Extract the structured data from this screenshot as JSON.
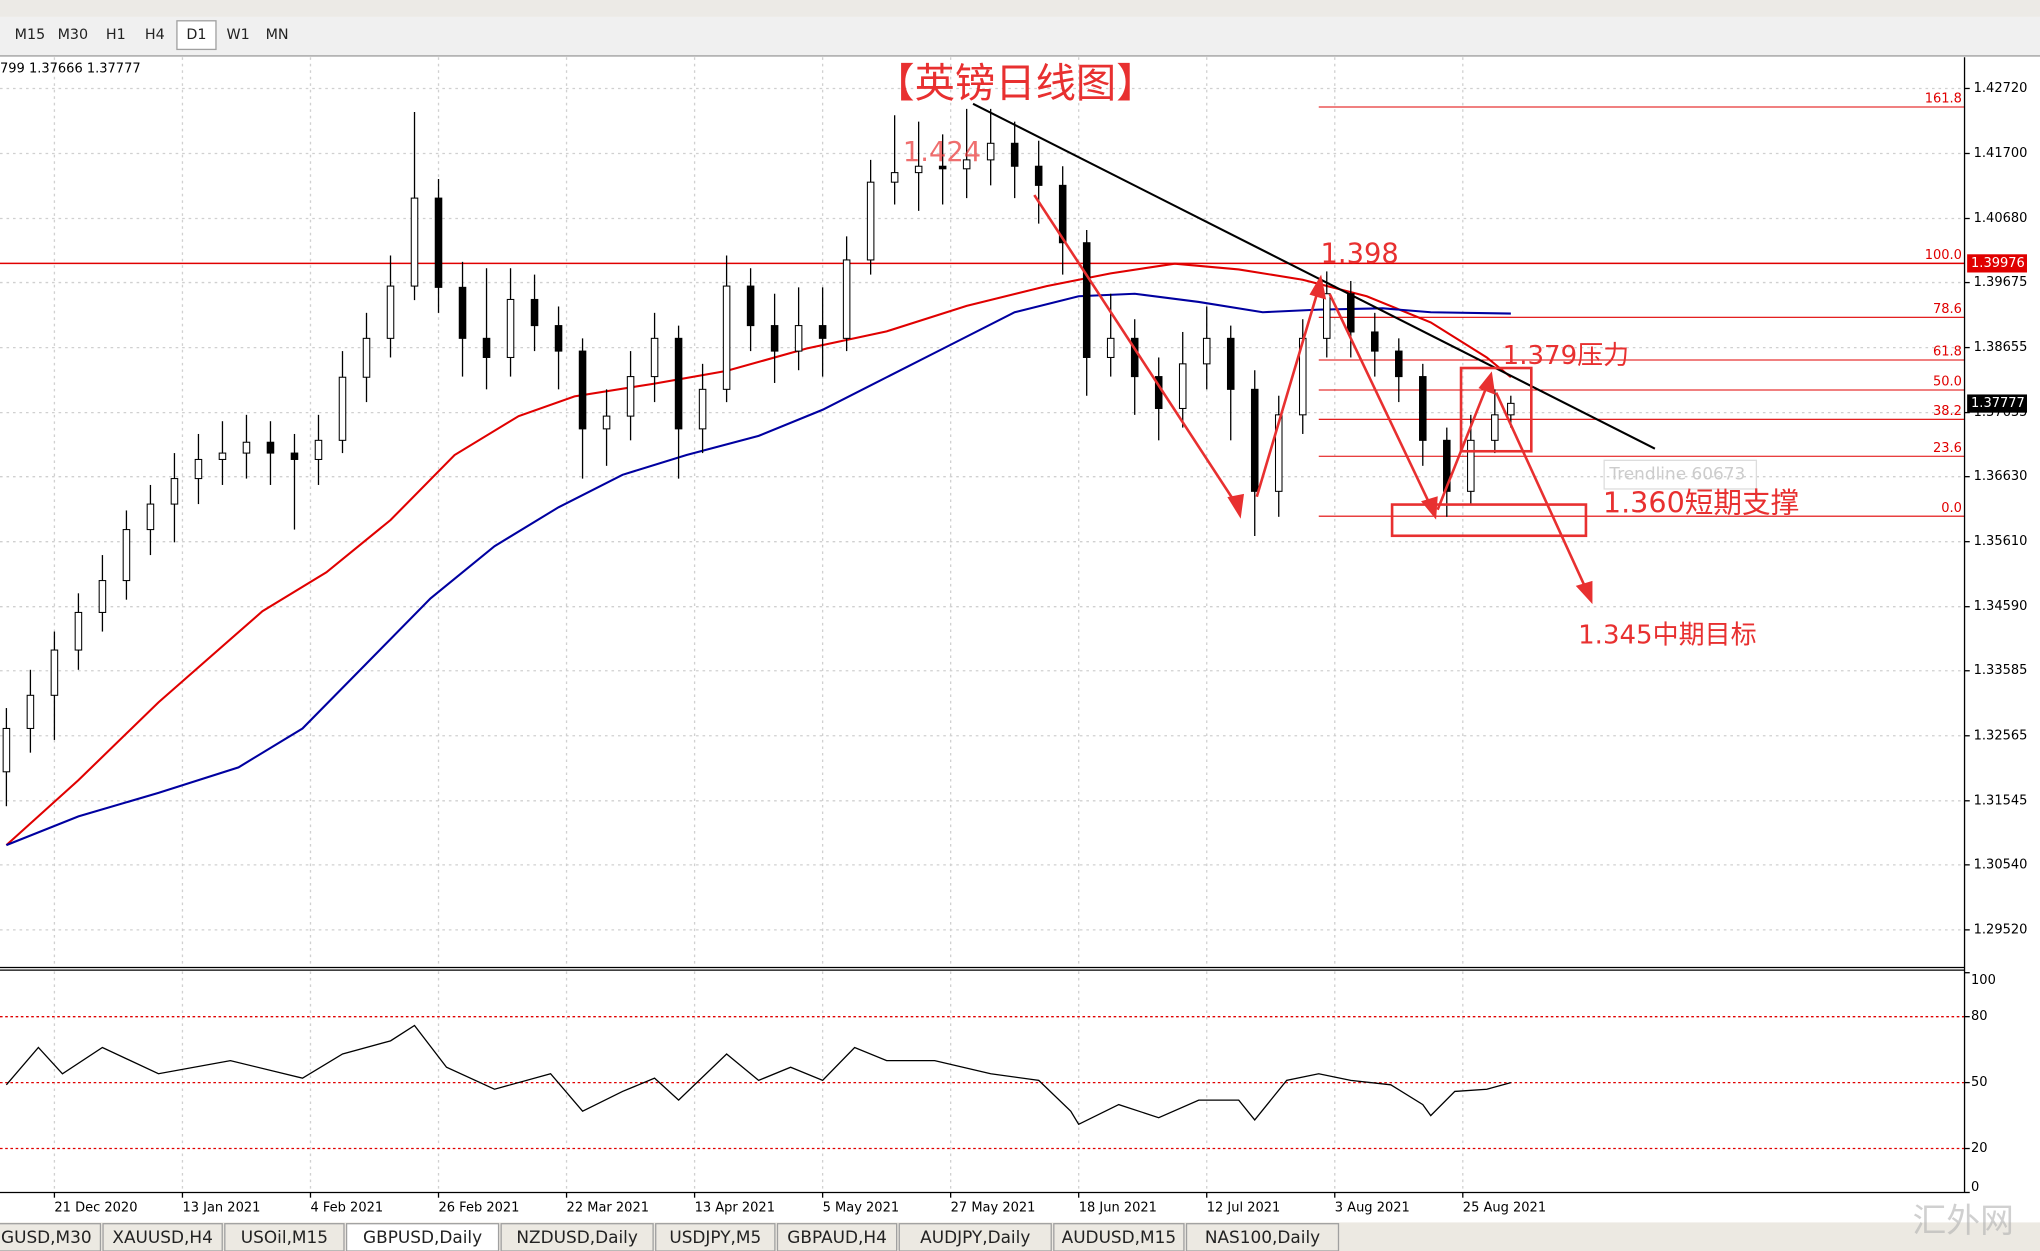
{
  "toolbar": {
    "timeframes": [
      "M15",
      "M30",
      "H1",
      "H4",
      "D1",
      "W1",
      "MN"
    ],
    "active_timeframe": 4
  },
  "chart_data": {
    "type": "candlestick",
    "info": "799 1.37666 1.37777",
    "xlim": [
      -0.8,
      244.7
    ],
    "xticks": [
      {
        "value": 6,
        "label": "21 Dec 2020"
      },
      {
        "value": 22,
        "label": "13 Jan 2021"
      },
      {
        "value": 38,
        "label": "4 Feb 2021"
      },
      {
        "value": 54,
        "label": "26 Feb 2021"
      },
      {
        "value": 70,
        "label": "22 Mar 2021"
      },
      {
        "value": 86,
        "label": "13 Apr 2021"
      },
      {
        "value": 102,
        "label": "5 May 2021"
      },
      {
        "value": 118,
        "label": "27 May 2021"
      },
      {
        "value": 134,
        "label": "18 Jun 2021"
      },
      {
        "value": 150,
        "label": "12 Jul 2021"
      },
      {
        "value": 166,
        "label": "3 Aug 2021"
      },
      {
        "value": 182,
        "label": "25 Aug 2021"
      }
    ],
    "ylim": [
      1.2895,
      1.4319
    ],
    "yticks": [
      {
        "value": 1.4272,
        "label": "1.42720"
      },
      {
        "value": 1.417,
        "label": "1.41700"
      },
      {
        "value": 1.4068,
        "label": "1.40680"
      },
      {
        "value": 1.39675,
        "label": "1.39675"
      },
      {
        "value": 1.38655,
        "label": "1.38655"
      },
      {
        "value": 1.37635,
        "label": "1.37635"
      },
      {
        "value": 1.3663,
        "label": "1.36630"
      },
      {
        "value": 1.3561,
        "label": "1.35610"
      },
      {
        "value": 1.3459,
        "label": "1.34590"
      },
      {
        "value": 1.33585,
        "label": "1.33585"
      },
      {
        "value": 1.32565,
        "label": "1.32565"
      },
      {
        "value": 1.31545,
        "label": "1.31545"
      },
      {
        "value": 1.3054,
        "label": "1.30540"
      },
      {
        "value": 1.2952,
        "label": "1.29520"
      }
    ],
    "grid": true,
    "candles": {
      "up_color": "#ffffff",
      "down_color": "#000000",
      "x": [
        0,
        3,
        6,
        9,
        12,
        15,
        18,
        21,
        24,
        27,
        30,
        33,
        36,
        39,
        42,
        45,
        48,
        51,
        54,
        57,
        60,
        63,
        66,
        69,
        72,
        75,
        78,
        81,
        84,
        87,
        90,
        93,
        96,
        99,
        102,
        105,
        108,
        111,
        114,
        117,
        120,
        123,
        126,
        129,
        132,
        135,
        138,
        141,
        144,
        147,
        150,
        153,
        156,
        159,
        162,
        165,
        168,
        171,
        174,
        177,
        180,
        183,
        186,
        188
      ],
      "open": [
        1.32,
        1.3268,
        1.332,
        1.3391,
        1.345,
        1.35,
        1.358,
        1.362,
        1.366,
        1.369,
        1.37,
        1.3717,
        1.37,
        1.369,
        1.372,
        1.3819,
        1.388,
        1.3962,
        1.41,
        1.396,
        1.388,
        1.385,
        1.3941,
        1.39,
        1.386,
        1.3738,
        1.3758,
        1.382,
        1.388,
        1.3738,
        1.38,
        1.3962,
        1.39,
        1.386,
        1.39,
        1.388,
        1.4003,
        1.4125,
        1.414,
        1.415,
        1.4146,
        1.416,
        1.4186,
        1.415,
        1.412,
        1.403,
        1.385,
        1.388,
        1.382,
        1.377,
        1.384,
        1.388,
        1.38,
        1.364,
        1.376,
        1.388,
        1.395,
        1.389,
        1.386,
        1.382,
        1.372,
        1.364,
        1.372,
        1.376
      ],
      "high": [
        1.33,
        1.336,
        1.342,
        1.348,
        1.354,
        1.361,
        1.365,
        1.37,
        1.373,
        1.375,
        1.376,
        1.375,
        1.373,
        1.376,
        1.386,
        1.392,
        1.401,
        1.4235,
        1.413,
        1.4,
        1.399,
        1.399,
        1.398,
        1.393,
        1.388,
        1.38,
        1.386,
        1.392,
        1.39,
        1.384,
        1.401,
        1.399,
        1.395,
        1.396,
        1.396,
        1.404,
        1.416,
        1.423,
        1.422,
        1.42,
        1.424,
        1.424,
        1.422,
        1.419,
        1.415,
        1.405,
        1.395,
        1.391,
        1.385,
        1.389,
        1.393,
        1.39,
        1.383,
        1.379,
        1.391,
        1.3985,
        1.397,
        1.392,
        1.388,
        1.384,
        1.374,
        1.376,
        1.38,
        1.379
      ],
      "low": [
        1.3146,
        1.323,
        1.325,
        1.336,
        1.342,
        1.347,
        1.354,
        1.356,
        1.362,
        1.365,
        1.366,
        1.365,
        1.358,
        1.365,
        1.37,
        1.378,
        1.385,
        1.394,
        1.392,
        1.382,
        1.38,
        1.382,
        1.386,
        1.38,
        1.366,
        1.368,
        1.372,
        1.378,
        1.366,
        1.37,
        1.378,
        1.386,
        1.381,
        1.383,
        1.382,
        1.386,
        1.398,
        1.409,
        1.408,
        1.409,
        1.41,
        1.412,
        1.41,
        1.406,
        1.398,
        1.379,
        1.382,
        1.376,
        1.372,
        1.374,
        1.38,
        1.372,
        1.357,
        1.36,
        1.373,
        1.385,
        1.385,
        1.382,
        1.378,
        1.368,
        1.36,
        1.362,
        1.37,
        1.374
      ],
      "close": [
        1.3268,
        1.332,
        1.3391,
        1.345,
        1.35,
        1.358,
        1.362,
        1.366,
        1.369,
        1.37,
        1.3717,
        1.37,
        1.369,
        1.372,
        1.3819,
        1.388,
        1.3962,
        1.41,
        1.396,
        1.388,
        1.385,
        1.3941,
        1.39,
        1.386,
        1.3738,
        1.3758,
        1.382,
        1.388,
        1.3738,
        1.38,
        1.3962,
        1.39,
        1.386,
        1.39,
        1.388,
        1.4003,
        1.4125,
        1.414,
        1.415,
        1.4146,
        1.416,
        1.4186,
        1.415,
        1.412,
        1.403,
        1.385,
        1.388,
        1.382,
        1.377,
        1.384,
        1.388,
        1.38,
        1.364,
        1.376,
        1.388,
        1.395,
        1.389,
        1.386,
        1.382,
        1.372,
        1.364,
        1.372,
        1.376,
        1.3778
      ]
    },
    "moving_averages": [
      {
        "color": "#e00000",
        "x": [
          0,
          9,
          19,
          32,
          40,
          48,
          56,
          64,
          71,
          81,
          90,
          100,
          110,
          120,
          130,
          138,
          146,
          154,
          162,
          170,
          178,
          185,
          188
        ],
        "values": [
          1.3085,
          1.3187,
          1.3309,
          1.3452,
          1.3513,
          1.3595,
          1.3697,
          1.3758,
          1.3789,
          1.3809,
          1.3829,
          1.3864,
          1.3891,
          1.3931,
          1.3962,
          1.3982,
          1.3997,
          1.3988,
          1.3972,
          1.3946,
          1.3905,
          1.385,
          1.3819
        ]
      },
      {
        "color": "#0000a0",
        "x": [
          0,
          9,
          19,
          29,
          37,
          45,
          53,
          61,
          69,
          77,
          85,
          94,
          102,
          110,
          118,
          126,
          134,
          141,
          149,
          157,
          164,
          172,
          178,
          188
        ],
        "values": [
          1.3085,
          1.313,
          1.3167,
          1.3207,
          1.3268,
          1.337,
          1.3472,
          1.3554,
          1.3615,
          1.3666,
          1.3697,
          1.3727,
          1.3768,
          1.3819,
          1.387,
          1.3921,
          1.3946,
          1.395,
          1.3937,
          1.3921,
          1.3925,
          1.3927,
          1.3921,
          1.3919
        ]
      }
    ],
    "hline": {
      "value": 1.39976,
      "label": "1.39976",
      "color": "#e00000"
    },
    "last_price": {
      "value": 1.37777,
      "label": "1.37777"
    },
    "fibo": {
      "from_x": 164,
      "color": "#e00000",
      "levels": [
        "161.8",
        "100.0",
        "78.6",
        "61.8",
        "50.0",
        "38.2",
        "23.6",
        "0.0"
      ],
      "prices": [
        1.4243,
        1.39976,
        1.3913,
        1.3846,
        1.3799,
        1.3753,
        1.3695,
        1.3601
      ]
    },
    "trendline": {
      "color": "#000000",
      "x": [
        120.8,
        206
      ],
      "values": [
        1.4248,
        1.3707
      ]
    },
    "annotations": {
      "title": "【英镑日线图】",
      "high": "1.424",
      "peak": "1.398",
      "resistance": "1.379压力",
      "support": "1.360短期支撑",
      "target": "1.345中期目标",
      "trendline_label": "Trendline 60673"
    },
    "rsi": {
      "ylim": [
        0,
        100
      ],
      "yticks": [
        100,
        80,
        50,
        20,
        0
      ],
      "levels": [
        80,
        50,
        20
      ],
      "color": "#000000",
      "x": [
        0,
        4,
        7,
        12,
        19,
        28,
        37,
        42,
        48,
        51,
        55,
        61,
        68,
        72,
        77,
        81,
        84,
        90,
        94,
        98,
        102,
        106,
        110,
        116,
        123,
        129,
        133,
        134,
        139,
        144,
        149,
        154,
        156,
        160,
        164,
        168,
        173,
        177,
        178,
        181,
        185,
        188
      ],
      "values": [
        49,
        66,
        54,
        66,
        54,
        60,
        52,
        63,
        69,
        76,
        57,
        47,
        54,
        37,
        46,
        52,
        42,
        63,
        51,
        57,
        51,
        66,
        60,
        60,
        54,
        51,
        37,
        31,
        40,
        34,
        42,
        42,
        33,
        51,
        54,
        51,
        49,
        40,
        35,
        46,
        47,
        50
      ]
    }
  },
  "tabs": {
    "items": [
      "GUSD,M30",
      "XAUUSD,H4",
      "USOil,M15",
      "GBPUSD,Daily",
      "NZDUSD,Daily",
      "USDJPY,M5",
      "GBPAUD,H4",
      "AUDJPY,Daily",
      "AUDUSD,M15",
      "NAS100,Daily"
    ],
    "active": 3
  },
  "watermark": "汇外网"
}
